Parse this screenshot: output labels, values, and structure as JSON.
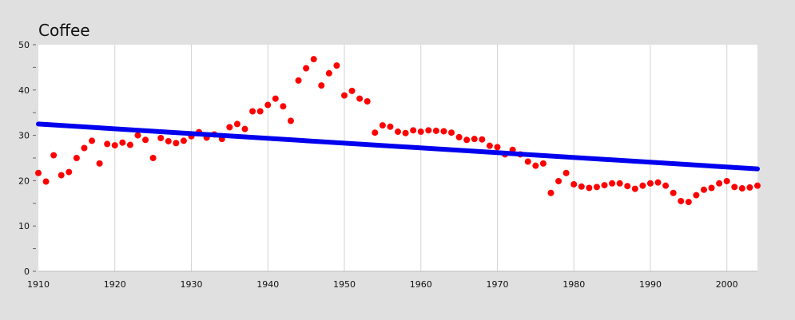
{
  "chart_data": {
    "type": "scatter",
    "title": "Coffee",
    "xlabel": "",
    "ylabel": "",
    "xlim": [
      1910,
      2004
    ],
    "ylim": [
      0,
      50
    ],
    "x_ticks": [
      1910,
      1920,
      1930,
      1940,
      1950,
      1960,
      1970,
      1980,
      1990,
      2000
    ],
    "y_ticks": [
      0,
      10,
      20,
      30,
      40,
      50
    ],
    "grid": "vertical",
    "colors": {
      "background": "#e0e0e0",
      "plot_area": "#ffffff",
      "points": "#ff0000",
      "trend": "#0000ee",
      "grid": "#d3d3d3"
    },
    "series": [
      {
        "type": "scatter",
        "x": [
          1910,
          1911,
          1912,
          1913,
          1914,
          1915,
          1916,
          1917,
          1918,
          1919,
          1920,
          1921,
          1922,
          1923,
          1924,
          1925,
          1926,
          1927,
          1928,
          1929,
          1930,
          1931,
          1932,
          1933,
          1934,
          1935,
          1936,
          1937,
          1938,
          1939,
          1940,
          1941,
          1942,
          1943,
          1944,
          1945,
          1946,
          1947,
          1948,
          1949,
          1950,
          1951,
          1952,
          1953,
          1954,
          1955,
          1956,
          1957,
          1958,
          1959,
          1960,
          1961,
          1962,
          1963,
          1964,
          1965,
          1966,
          1967,
          1968,
          1969,
          1970,
          1971,
          1972,
          1973,
          1974,
          1975,
          1976,
          1977,
          1978,
          1979,
          1980,
          1981,
          1982,
          1983,
          1984,
          1985,
          1986,
          1987,
          1988,
          1989,
          1990,
          1991,
          1992,
          1993,
          1994,
          1995,
          1996,
          1997,
          1998,
          1999,
          2000,
          2001,
          2002,
          2003,
          2004
        ],
        "y": [
          21.7,
          19.8,
          25.6,
          21.2,
          21.9,
          25.0,
          27.2,
          28.8,
          23.8,
          28.1,
          27.8,
          28.4,
          27.9,
          30.0,
          29.0,
          25.0,
          29.4,
          28.7,
          28.3,
          28.8,
          29.8,
          30.7,
          29.5,
          30.2,
          29.2,
          31.8,
          32.5,
          31.4,
          35.3,
          35.3,
          36.7,
          38.1,
          36.4,
          33.2,
          42.1,
          44.8,
          46.8,
          41.0,
          43.7,
          45.4,
          38.8,
          39.8,
          38.1,
          37.5,
          30.6,
          32.2,
          31.9,
          30.8,
          30.5,
          31.1,
          30.8,
          31.1,
          31.0,
          30.9,
          30.6,
          29.6,
          29.0,
          29.2,
          29.1,
          27.7,
          27.4,
          25.8,
          26.8,
          25.8,
          24.2,
          23.3,
          23.8,
          17.3,
          19.9,
          21.7,
          19.2,
          18.7,
          18.4,
          18.6,
          19.0,
          19.4,
          19.4,
          18.8,
          18.2,
          18.9,
          19.4,
          19.6,
          18.9,
          17.3,
          15.5,
          15.3,
          16.8,
          18.0,
          18.4,
          19.4,
          19.9,
          18.6,
          18.3,
          18.5,
          18.9
        ]
      },
      {
        "type": "line",
        "x": [
          1910,
          2004
        ],
        "y": [
          32.5,
          22.6
        ]
      }
    ]
  }
}
